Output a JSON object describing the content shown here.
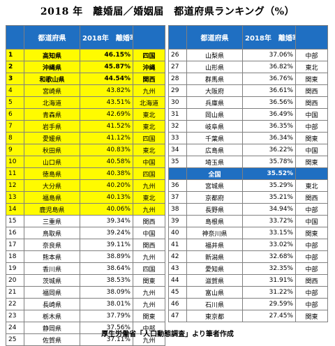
{
  "title": "2018 年　離婚届／婚姻届　都道府県ランキング（%）",
  "footer": "厚生労働省「人口動態調査」より筆者作成",
  "headers": {
    "pref": "都道府県",
    "rate": "2018年　離婚率"
  },
  "colors": {
    "header_blue": "#1f6fc2",
    "highlight_yellow": "#fffb00"
  },
  "left_rows": [
    {
      "rank": "1",
      "pref": "高知県",
      "rate": "46.15%",
      "region": "四国",
      "hl": true,
      "bold": true
    },
    {
      "rank": "2",
      "pref": "沖縄県",
      "rate": "45.87%",
      "region": "沖縄",
      "hl": true,
      "bold": true
    },
    {
      "rank": "3",
      "pref": "和歌山県",
      "rate": "44.54%",
      "region": "関西",
      "hl": true,
      "bold": true
    },
    {
      "rank": "4",
      "pref": "宮崎県",
      "rate": "43.82%",
      "region": "九州",
      "hl": true
    },
    {
      "rank": "5",
      "pref": "北海道",
      "rate": "43.51%",
      "region": "北海道",
      "hl": true
    },
    {
      "rank": "6",
      "pref": "青森県",
      "rate": "42.69%",
      "region": "東北",
      "hl": true
    },
    {
      "rank": "7",
      "pref": "岩手県",
      "rate": "41.52%",
      "region": "東北",
      "hl": true
    },
    {
      "rank": "8",
      "pref": "愛媛県",
      "rate": "41.12%",
      "region": "四国",
      "hl": true
    },
    {
      "rank": "9",
      "pref": "秋田県",
      "rate": "40.83%",
      "region": "東北",
      "hl": true
    },
    {
      "rank": "10",
      "pref": "山口県",
      "rate": "40.58%",
      "region": "中国",
      "hl": true
    },
    {
      "rank": "11",
      "pref": "徳島県",
      "rate": "40.38%",
      "region": "四国",
      "hl": true
    },
    {
      "rank": "12",
      "pref": "大分県",
      "rate": "40.20%",
      "region": "九州",
      "hl": true
    },
    {
      "rank": "13",
      "pref": "福島県",
      "rate": "40.13%",
      "region": "東北",
      "hl": true
    },
    {
      "rank": "14",
      "pref": "鹿児島県",
      "rate": "40.06%",
      "region": "九州",
      "hl": true
    },
    {
      "rank": "15",
      "pref": "三重県",
      "rate": "39.34%",
      "region": "関西"
    },
    {
      "rank": "16",
      "pref": "鳥取県",
      "rate": "39.24%",
      "region": "中国"
    },
    {
      "rank": "17",
      "pref": "奈良県",
      "rate": "39.11%",
      "region": "関西"
    },
    {
      "rank": "18",
      "pref": "熊本県",
      "rate": "38.89%",
      "region": "九州"
    },
    {
      "rank": "19",
      "pref": "香川県",
      "rate": "38.64%",
      "region": "四国"
    },
    {
      "rank": "20",
      "pref": "茨城県",
      "rate": "38.53%",
      "region": "関東"
    },
    {
      "rank": "21",
      "pref": "福岡県",
      "rate": "38.09%",
      "region": "九州"
    },
    {
      "rank": "22",
      "pref": "長崎県",
      "rate": "38.01%",
      "region": "九州"
    },
    {
      "rank": "23",
      "pref": "栃木県",
      "rate": "37.79%",
      "region": "関東"
    },
    {
      "rank": "24",
      "pref": "静岡県",
      "rate": "37.56%",
      "region": "中部"
    },
    {
      "rank": "25",
      "pref": "佐賀県",
      "rate": "37.11%",
      "region": "九州"
    }
  ],
  "right_rows": [
    {
      "rank": "26",
      "pref": "山梨県",
      "rate": "37.06%",
      "region": "中部"
    },
    {
      "rank": "27",
      "pref": "山形県",
      "rate": "36.82%",
      "region": "東北"
    },
    {
      "rank": "28",
      "pref": "群馬県",
      "rate": "36.76%",
      "region": "関東"
    },
    {
      "rank": "29",
      "pref": "大阪府",
      "rate": "36.61%",
      "region": "関西"
    },
    {
      "rank": "30",
      "pref": "兵庫県",
      "rate": "36.56%",
      "region": "関西"
    },
    {
      "rank": "31",
      "pref": "岡山県",
      "rate": "36.49%",
      "region": "中国"
    },
    {
      "rank": "32",
      "pref": "岐阜県",
      "rate": "36.35%",
      "region": "中部"
    },
    {
      "rank": "33",
      "pref": "千葉県",
      "rate": "36.34%",
      "region": "関東"
    },
    {
      "rank": "34",
      "pref": "広島県",
      "rate": "36.22%",
      "region": "中国"
    },
    {
      "rank": "35",
      "pref": "埼玉県",
      "rate": "35.78%",
      "region": "関東"
    },
    {
      "rank": "",
      "pref": "全国",
      "rate": "35.52%",
      "region": "",
      "national": true
    },
    {
      "rank": "36",
      "pref": "宮城県",
      "rate": "35.29%",
      "region": "東北"
    },
    {
      "rank": "37",
      "pref": "京都府",
      "rate": "35.21%",
      "region": "関西"
    },
    {
      "rank": "38",
      "pref": "長野県",
      "rate": "34.94%",
      "region": "中部"
    },
    {
      "rank": "39",
      "pref": "島根県",
      "rate": "33.72%",
      "region": "中国"
    },
    {
      "rank": "40",
      "pref": "神奈川県",
      "rate": "33.15%",
      "region": "関東"
    },
    {
      "rank": "41",
      "pref": "福井県",
      "rate": "33.02%",
      "region": "中部"
    },
    {
      "rank": "42",
      "pref": "新潟県",
      "rate": "32.68%",
      "region": "中部"
    },
    {
      "rank": "43",
      "pref": "愛知県",
      "rate": "32.35%",
      "region": "中部"
    },
    {
      "rank": "44",
      "pref": "滋賀県",
      "rate": "31.91%",
      "region": "関西"
    },
    {
      "rank": "45",
      "pref": "富山県",
      "rate": "31.22%",
      "region": "中部"
    },
    {
      "rank": "46",
      "pref": "石川県",
      "rate": "29.59%",
      "region": "中部"
    },
    {
      "rank": "47",
      "pref": "東京都",
      "rate": "27.45%",
      "region": "関東"
    }
  ],
  "chart_data": {
    "type": "table",
    "title": "2018 年　離婚届／婚姻届　都道府県ランキング（%）",
    "columns": [
      "",
      "都道府県",
      "2018年　離婚率",
      ""
    ],
    "national_average": {
      "label": "全国",
      "value": 35.52
    },
    "rows": [
      [
        "1",
        "高知県",
        46.15,
        "四国"
      ],
      [
        "2",
        "沖縄県",
        45.87,
        "沖縄"
      ],
      [
        "3",
        "和歌山県",
        44.54,
        "関西"
      ],
      [
        "4",
        "宮崎県",
        43.82,
        "九州"
      ],
      [
        "5",
        "北海道",
        43.51,
        "北海道"
      ],
      [
        "6",
        "青森県",
        42.69,
        "東北"
      ],
      [
        "7",
        "岩手県",
        41.52,
        "東北"
      ],
      [
        "8",
        "愛媛県",
        41.12,
        "四国"
      ],
      [
        "9",
        "秋田県",
        40.83,
        "東北"
      ],
      [
        "10",
        "山口県",
        40.58,
        "中国"
      ],
      [
        "11",
        "徳島県",
        40.38,
        "四国"
      ],
      [
        "12",
        "大分県",
        40.2,
        "九州"
      ],
      [
        "13",
        "福島県",
        40.13,
        "東北"
      ],
      [
        "14",
        "鹿児島県",
        40.06,
        "九州"
      ],
      [
        "15",
        "三重県",
        39.34,
        "関西"
      ],
      [
        "16",
        "鳥取県",
        39.24,
        "中国"
      ],
      [
        "17",
        "奈良県",
        39.11,
        "関西"
      ],
      [
        "18",
        "熊本県",
        38.89,
        "九州"
      ],
      [
        "19",
        "香川県",
        38.64,
        "四国"
      ],
      [
        "20",
        "茨城県",
        38.53,
        "関東"
      ],
      [
        "21",
        "福岡県",
        38.09,
        "九州"
      ],
      [
        "22",
        "長崎県",
        38.01,
        "九州"
      ],
      [
        "23",
        "栃木県",
        37.79,
        "関東"
      ],
      [
        "24",
        "静岡県",
        37.56,
        "中部"
      ],
      [
        "25",
        "佐賀県",
        37.11,
        "九州"
      ],
      [
        "26",
        "山梨県",
        37.06,
        "中部"
      ],
      [
        "27",
        "山形県",
        36.82,
        "東北"
      ],
      [
        "28",
        "群馬県",
        36.76,
        "関東"
      ],
      [
        "29",
        "大阪府",
        36.61,
        "関西"
      ],
      [
        "30",
        "兵庫県",
        36.56,
        "関西"
      ],
      [
        "31",
        "岡山県",
        36.49,
        "中国"
      ],
      [
        "32",
        "岐阜県",
        36.35,
        "中部"
      ],
      [
        "33",
        "千葉県",
        36.34,
        "関東"
      ],
      [
        "34",
        "広島県",
        36.22,
        "中国"
      ],
      [
        "35",
        "埼玉県",
        35.78,
        "関東"
      ],
      [
        "36",
        "宮城県",
        35.29,
        "東北"
      ],
      [
        "37",
        "京都府",
        35.21,
        "関西"
      ],
      [
        "38",
        "長野県",
        34.94,
        "中部"
      ],
      [
        "39",
        "島根県",
        33.72,
        "中国"
      ],
      [
        "40",
        "神奈川県",
        33.15,
        "関東"
      ],
      [
        "41",
        "福井県",
        33.02,
        "中部"
      ],
      [
        "42",
        "新潟県",
        32.68,
        "中部"
      ],
      [
        "43",
        "愛知県",
        32.35,
        "中部"
      ],
      [
        "44",
        "滋賀県",
        31.91,
        "関西"
      ],
      [
        "45",
        "富山県",
        31.22,
        "中部"
      ],
      [
        "46",
        "石川県",
        29.59,
        "中部"
      ],
      [
        "47",
        "東京都",
        27.45,
        "関東"
      ]
    ]
  }
}
